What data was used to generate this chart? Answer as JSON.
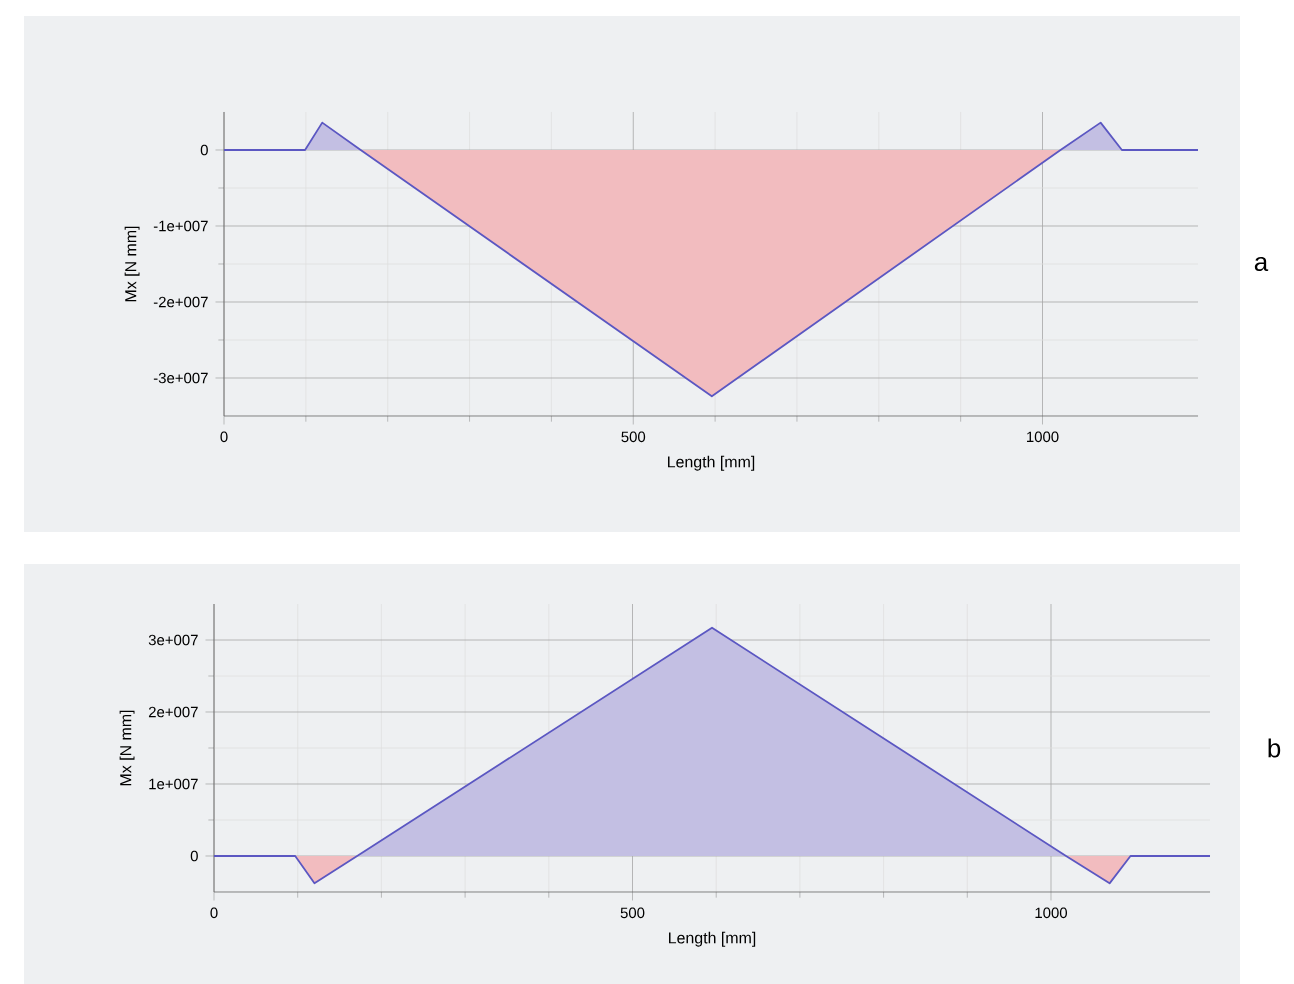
{
  "chart_data": [
    {
      "type": "area",
      "xlabel": "Length [mm]",
      "ylabel": "Mx [N mm]",
      "xlim": [
        0,
        1190
      ],
      "xticks": [
        0,
        500,
        1000
      ],
      "ylim": [
        -35000000,
        5000000
      ],
      "yticks": [
        {
          "value": -30000000,
          "label": "-3e+007"
        },
        {
          "value": -20000000,
          "label": "-2e+007"
        },
        {
          "value": -10000000,
          "label": "-1e+007"
        },
        0
      ],
      "grid": true,
      "annotations": [
        "a"
      ],
      "series": [
        {
          "color": "#f2bcbf",
          "x": [
            167,
            596,
            1022
          ],
          "values": [
            0,
            -32400000,
            0
          ]
        },
        {
          "color": "#c3bfe3",
          "x": [
            99,
            120,
            167,
            596,
            1022,
            1071,
            1097
          ],
          "values": [
            0,
            3600000,
            0,
            null,
            0,
            3600000,
            0
          ]
        },
        {
          "type": "line",
          "color": "#5b57c2",
          "x": [
            0,
            99,
            120,
            167,
            596,
            1022,
            1071,
            1097,
            1190
          ],
          "values": [
            0,
            0,
            3600000,
            0,
            -32400000,
            0,
            3600000,
            0,
            0
          ]
        }
      ]
    },
    {
      "type": "area",
      "xlabel": "Length [mm]",
      "ylabel": "Mx [N mm]",
      "xlim": [
        0,
        1190
      ],
      "xticks": [
        0,
        500,
        1000
      ],
      "ylim": [
        -5000000,
        35000000
      ],
      "yticks": [
        0,
        {
          "value": 10000000,
          "label": "1e+007"
        },
        {
          "value": 20000000,
          "label": "2e+007"
        },
        {
          "value": 30000000,
          "label": "3e+007"
        }
      ],
      "grid": true,
      "annotations": [
        "b"
      ],
      "series": [
        {
          "color": "#f2bcbf",
          "x": [
            97,
            120,
            171,
            595,
            1018,
            1070,
            1095
          ],
          "values": [
            0,
            -3800000,
            0,
            null,
            0,
            -3800000,
            0
          ]
        },
        {
          "color": "#c3bfe3",
          "x": [
            171,
            595,
            1018
          ],
          "values": [
            0,
            31700000,
            0
          ]
        },
        {
          "type": "line",
          "color": "#5b57c2",
          "x": [
            0,
            97,
            120,
            171,
            595,
            1018,
            1070,
            1095,
            1190
          ],
          "values": [
            0,
            0,
            -3800000,
            0,
            31700000,
            0,
            -3800000,
            0,
            0
          ]
        }
      ]
    }
  ]
}
